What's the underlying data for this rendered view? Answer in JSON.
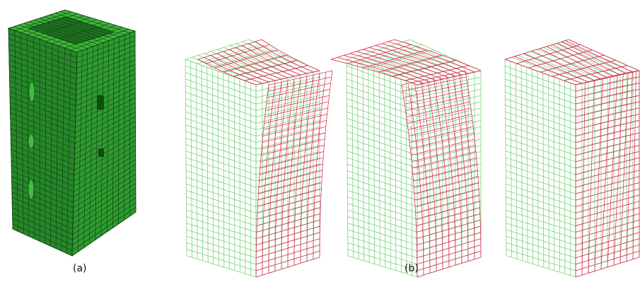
{
  "panels": [
    {
      "id": "a",
      "caption": "(a)",
      "description_type": "solid-mesh"
    },
    {
      "id": "b",
      "caption": "(b)",
      "description_type": "mode-shapes"
    }
  ],
  "colors": {
    "solid_face_front": "#2f9a2f",
    "solid_face_side": "#27862a",
    "solid_face_top": "#3db43a",
    "mesh_line_dark": "#0c3d0c",
    "undeformed_mesh": "#7ad27a",
    "deformed_mesh": "#d81e4a",
    "background": "#ffffff"
  }
}
